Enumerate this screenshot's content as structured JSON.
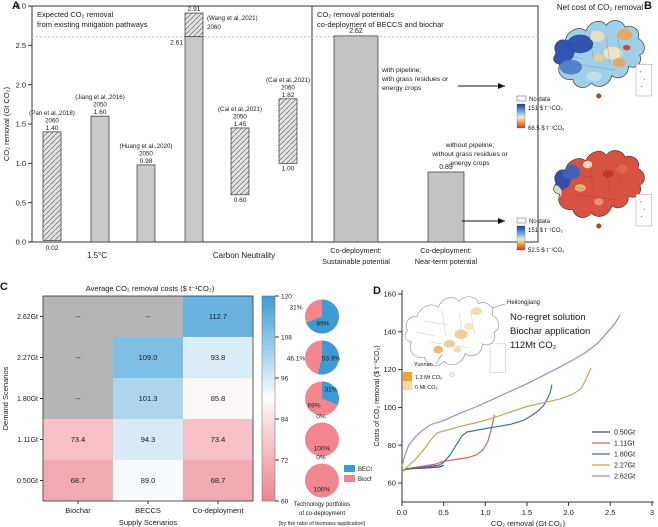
{
  "panels": {
    "a": "A",
    "b": "B",
    "c": "C",
    "d": "D"
  },
  "chart_data": [
    {
      "id": "A",
      "type": "bar",
      "title_left": [
        "Expected CO₂ removal",
        "from existing mitigation pathways"
      ],
      "title_right": [
        "CO₂ removal potentials",
        "co-deployment of BECCS and biochar"
      ],
      "ylabel": "CO₂ removal (Gt CO₂)",
      "ylim": [
        0,
        3
      ],
      "yticks": [
        "0.0",
        "0.5",
        "1.0",
        "1.5",
        "2.0",
        "2.5",
        "3.0"
      ],
      "reference_line": 2.61,
      "groups": [
        "1.5°C",
        "Carbon Neutrality"
      ],
      "bars": [
        {
          "source": "(Pan et al.,2018)",
          "year": "2060",
          "bottom": 0.02,
          "top": 1.4,
          "top_label": "1.40",
          "bottom_label": "0.02",
          "style": "hatched",
          "group": "1.5°C"
        },
        {
          "source": "(Jiang et al.,2016)",
          "year": "2050",
          "bottom": 0,
          "top": 1.6,
          "top_label": "1.60",
          "style": "solid",
          "group": "1.5°C"
        },
        {
          "source": "(Huang et al.,2020)",
          "year": "2050",
          "bottom": 0,
          "top": 0.98,
          "top_label": "0.98",
          "style": "solid",
          "group": "1.5°C"
        },
        {
          "source": "(Wang et al.,2021)",
          "year": "2060",
          "bottom": 0,
          "top": 2.91,
          "split": 2.61,
          "top_label": "2.91",
          "split_label": "2.61",
          "style": "solid+hatched",
          "group": "Carbon Neutrality"
        },
        {
          "source": "(Cai et al.,2021)",
          "year": "2050",
          "bottom": 0.6,
          "top": 1.45,
          "top_label": "1.45",
          "bottom_label": "0.60",
          "style": "hatched",
          "group": "Carbon Neutrality"
        },
        {
          "source": "(Cai et al.,2021)",
          "year": "2060",
          "bottom": 1.0,
          "top": 1.82,
          "top_label": "1.82",
          "bottom_label": "1.00",
          "style": "hatched",
          "group": "Carbon Neutrality"
        }
      ],
      "potential_bars": [
        {
          "label": [
            "Co-deployment:",
            "Sustainable potential"
          ],
          "value": 2.62,
          "value_label": "2.62",
          "annotation": [
            "with pipeline;",
            "with grass residues or",
            "energy crops"
          ]
        },
        {
          "label": [
            "Co-deployment:",
            "Near-term potential"
          ],
          "value": 0.89,
          "value_label": "0.89",
          "annotation": [
            "without pipeline;",
            "without grass residues or",
            "energy crops"
          ]
        }
      ]
    },
    {
      "id": "B",
      "type": "map",
      "title": "Net cost of CO₂ removal",
      "maps": [
        {
          "name": "sustainable-potential-map",
          "scheme": "blue",
          "legend_no_data": "No data",
          "legend_high": "151 $ t⁻¹CO₂",
          "legend_low": "68.5 $ t⁻¹CO₂"
        },
        {
          "name": "near-term-potential-map",
          "scheme": "red",
          "legend_no_data": "No data",
          "legend_high": "151 $ t⁻¹CO₂",
          "legend_low": "52.5 $ t⁻¹CO₂"
        }
      ]
    },
    {
      "id": "C",
      "type": "heatmap",
      "title": "Average CO₂ removal costs ($ t⁻¹CO₂)",
      "xlabel": "Supply Scenarios",
      "ylabel": "Demand Scenarios",
      "columns": [
        "Biochar",
        "BECCS",
        "Co-deployment"
      ],
      "rows": [
        "2.62Gt",
        "2.27Gt",
        "1.80Gt",
        "1.11Gt",
        "0.50Gt"
      ],
      "values": [
        [
          null,
          null,
          112.7
        ],
        [
          null,
          109.0,
          93.8
        ],
        [
          null,
          101.3,
          85.8
        ],
        [
          73.4,
          94.3,
          73.4
        ],
        [
          68.7,
          89.0,
          68.7
        ]
      ],
      "null_label": "--",
      "colorbar": {
        "range": [
          60,
          120
        ],
        "ticks": [
          "120",
          "108",
          "96",
          "84",
          "72",
          "60"
        ]
      },
      "pies": [
        {
          "row": "2.62Gt",
          "beccs": 69,
          "biochar": 31,
          "beccs_label": "69%",
          "biochar_label": "31%"
        },
        {
          "row": "2.27Gt",
          "beccs": 53.9,
          "biochar": 46.1,
          "beccs_label": "53.9%",
          "biochar_label": "46.1%"
        },
        {
          "row": "1.80Gt",
          "beccs": 31,
          "biochar": 69,
          "beccs_label": "31%",
          "biochar_label": "69%"
        },
        {
          "row": "1.11Gt",
          "beccs": 0,
          "biochar": 100,
          "beccs_label": "0%",
          "biochar_label": "100%"
        },
        {
          "row": "0.50Gt",
          "beccs": 0,
          "biochar": 100,
          "beccs_label": "0%",
          "biochar_label": "100%"
        }
      ],
      "pie_legend": [
        "BECCS",
        "Biochar"
      ],
      "pie_caption": [
        "Technology portfolios",
        "of co-deployment",
        "[by the ratio of biomass application]"
      ],
      "colors": {
        "beccs": "#3d9bd3",
        "biochar": "#f2868e",
        "no_data": "#b5b5b5"
      }
    },
    {
      "id": "D",
      "type": "line",
      "xlabel": "CO₂ removal (Gt CO₂)",
      "ylabel": "Costs of CO₂ removal ($ t⁻¹CO₂)",
      "xlim": [
        0,
        3
      ],
      "ylim": [
        50,
        160
      ],
      "xticks": [
        "0.0",
        "0.5",
        "1.0",
        "1.5",
        "2.0",
        "2.5",
        "3"
      ],
      "yticks": [
        "160",
        "140",
        "120",
        "100",
        "80",
        "60"
      ],
      "series": [
        {
          "name": "0.50Gt",
          "color": "#4a4a4a",
          "points": [
            [
              0,
              66
            ],
            [
              0.02,
              67
            ],
            [
              0.1,
              67.5
            ],
            [
              0.3,
              68
            ],
            [
              0.45,
              68.5
            ],
            [
              0.48,
              69
            ],
            [
              0.5,
              69.5
            ]
          ]
        },
        {
          "name": "1.11Gt",
          "color": "#d9675f",
          "points": [
            [
              0,
              66
            ],
            [
              0.05,
              67.5
            ],
            [
              0.2,
              68.5
            ],
            [
              0.4,
              70
            ],
            [
              0.5,
              71.5
            ],
            [
              0.65,
              72.5
            ],
            [
              0.8,
              73.5
            ],
            [
              0.9,
              75
            ],
            [
              0.98,
              78
            ],
            [
              1.03,
              82
            ],
            [
              1.07,
              88
            ],
            [
              1.11,
              96
            ]
          ]
        },
        {
          "name": "1.80Gt",
          "color": "#3f6fb0",
          "points": [
            [
              0,
              66
            ],
            [
              0.05,
              67.5
            ],
            [
              0.3,
              68.5
            ],
            [
              0.45,
              69.5
            ],
            [
              0.5,
              71
            ],
            [
              0.58,
              75
            ],
            [
              0.65,
              80
            ],
            [
              0.72,
              85
            ],
            [
              0.78,
              87
            ],
            [
              0.9,
              88
            ],
            [
              1.1,
              89.5
            ],
            [
              1.3,
              91
            ],
            [
              1.45,
              93
            ],
            [
              1.55,
              95.5
            ],
            [
              1.63,
              98
            ],
            [
              1.7,
              101
            ],
            [
              1.74,
              104
            ],
            [
              1.78,
              108
            ],
            [
              1.8,
              112
            ]
          ]
        },
        {
          "name": "2.27Gt",
          "color": "#c7a45a",
          "points": [
            [
              0,
              66
            ],
            [
              0.05,
              68
            ],
            [
              0.15,
              72
            ],
            [
              0.25,
              77
            ],
            [
              0.35,
              83
            ],
            [
              0.42,
              86.5
            ],
            [
              0.5,
              87.5
            ],
            [
              0.7,
              90
            ],
            [
              0.9,
              92
            ],
            [
              1.1,
              94.5
            ],
            [
              1.3,
              97.5
            ],
            [
              1.5,
              100.5
            ],
            [
              1.7,
              102.5
            ],
            [
              1.9,
              104.5
            ],
            [
              2.05,
              107
            ],
            [
              2.15,
              110
            ],
            [
              2.2,
              114
            ],
            [
              2.27,
              121
            ]
          ]
        },
        {
          "name": "2.62Gt",
          "color": "#9b8ed0",
          "points": [
            [
              0,
              69
            ],
            [
              0.03,
              74
            ],
            [
              0.08,
              80
            ],
            [
              0.15,
              84
            ],
            [
              0.25,
              88
            ],
            [
              0.35,
              91
            ],
            [
              0.5,
              93
            ],
            [
              0.7,
              97
            ],
            [
              0.9,
              100.5
            ],
            [
              1.1,
              104.5
            ],
            [
              1.3,
              108.5
            ],
            [
              1.5,
              112.5
            ],
            [
              1.7,
              117
            ],
            [
              1.9,
              121.5
            ],
            [
              2.05,
              125
            ],
            [
              2.2,
              129
            ],
            [
              2.35,
              134
            ],
            [
              2.45,
              139
            ],
            [
              2.55,
              144
            ],
            [
              2.62,
              149
            ]
          ]
        }
      ],
      "inset": {
        "region_labels": [
          "Heilongjiang",
          "Yunnan"
        ],
        "legend": [
          "1.3 Mt CO₂",
          "0 Mt CO₂"
        ],
        "legend_colors": [
          "#f0a132",
          "#f8d9a6"
        ],
        "annotation": [
          "No-regret solution",
          "Biochar application",
          "112Mt CO₂"
        ]
      }
    }
  ]
}
